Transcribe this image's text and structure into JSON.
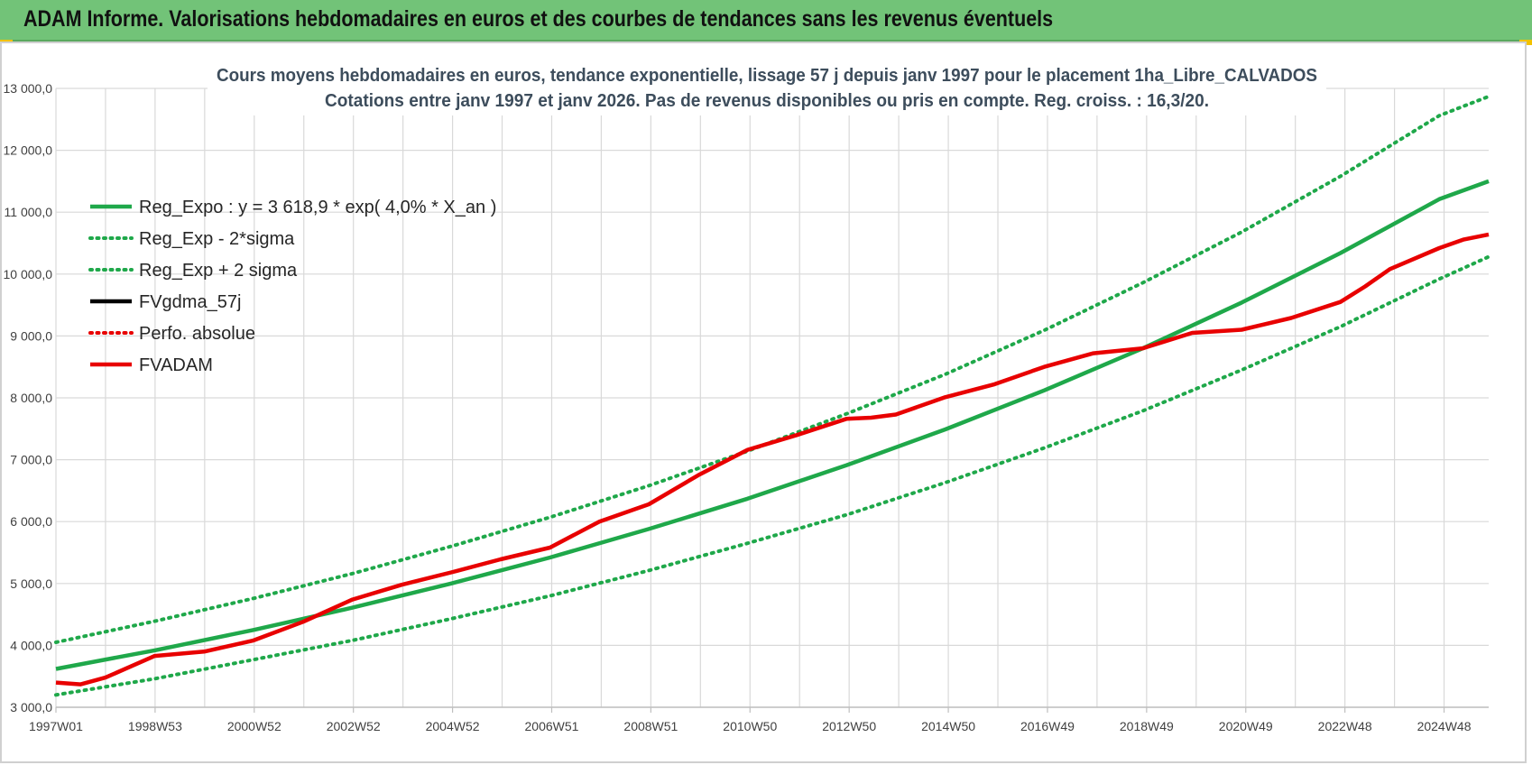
{
  "header": {
    "title": "ADAM Informe. Valorisations hebdomadaires en euros et des courbes de tendances sans les revenus éventuels"
  },
  "colors": {
    "header_bg": "#72c378",
    "green": "#1fa84a",
    "red": "#e80000",
    "black": "#000000",
    "grid": "#d9d9d9"
  },
  "chart_data": {
    "type": "line",
    "title_line1": "Cours moyens hebdomadaires en euros, tendance exponentielle, lissage 57 j depuis janv 1997  pour le placement 1ha_Libre_CALVADOS",
    "title_line2": "Cotations entre janv 1997 et janv 2026. Pas de revenus disponibles ou pris en compte. Reg. croiss. : 16,3/20.",
    "x_ticks": [
      "1997W01",
      "1998W53",
      "2000W52",
      "2002W52",
      "2004W52",
      "2006W51",
      "2008W51",
      "2010W50",
      "2012W50",
      "2014W50",
      "2016W49",
      "2018W49",
      "2020W49",
      "2022W48",
      "2024W48"
    ],
    "x_range": [
      1997.0,
      2026.0
    ],
    "y_ticks": [
      "3 000,0",
      "4 000,0",
      "5 000,0",
      "6 000,0",
      "7 000,0",
      "8 000,0",
      "9 000,0",
      "10 000,0",
      "11 000,0",
      "12 000,0",
      "13 000,0"
    ],
    "ylim": [
      3000,
      13000
    ],
    "grid": true,
    "legend_position": "top-left",
    "legend": [
      {
        "label": "Reg_Expo : y = 3 618,9 * exp( 4,0% *  X_an )",
        "color": "#1fa84a",
        "style": "solid"
      },
      {
        "label": "Reg_Exp - 2*sigma",
        "color": "#1fa84a",
        "style": "dotted"
      },
      {
        "label": "Reg_Exp + 2 sigma",
        "color": "#1fa84a",
        "style": "dotted"
      },
      {
        "label": "FVgdma_57j",
        "color": "#000000",
        "style": "solid"
      },
      {
        "label": "Perfo. absolue",
        "color": "#e80000",
        "style": "dotted"
      },
      {
        "label": "FVADAM",
        "color": "#e80000",
        "style": "solid"
      }
    ],
    "series": [
      {
        "name": "Reg_Expo : y = 3 618,9 * exp( 4,0% *  X_an )",
        "color": "#1fa84a",
        "style": "solid",
        "x": [
          1997,
          1999,
          2001,
          2003,
          2005,
          2007,
          2009,
          2011,
          2013,
          2015,
          2017,
          2019,
          2021,
          2023,
          2025,
          2026
        ],
        "y": [
          3619,
          3920,
          4250,
          4610,
          5000,
          5420,
          5880,
          6370,
          6910,
          7490,
          8120,
          8800,
          9540,
          10340,
          11210,
          11500
        ]
      },
      {
        "name": "Reg_Exp - 2*sigma",
        "color": "#1fa84a",
        "style": "dotted",
        "x": [
          1997,
          1999,
          2001,
          2003,
          2005,
          2007,
          2009,
          2011,
          2013,
          2015,
          2017,
          2019,
          2021,
          2023,
          2025,
          2026
        ],
        "y": [
          3200,
          3460,
          3770,
          4080,
          4430,
          4800,
          5210,
          5650,
          6110,
          6630,
          7190,
          7790,
          8450,
          9150,
          9920,
          10280
        ]
      },
      {
        "name": "Reg_Exp + 2 sigma",
        "color": "#1fa84a",
        "style": "dotted",
        "x": [
          1997,
          1999,
          2001,
          2003,
          2005,
          2007,
          2009,
          2011,
          2013,
          2015,
          2017,
          2019,
          2021,
          2023,
          2025,
          2026
        ],
        "y": [
          4050,
          4390,
          4760,
          5160,
          5600,
          6070,
          6580,
          7140,
          7740,
          8380,
          9090,
          9860,
          10680,
          11580,
          12560,
          12870
        ]
      },
      {
        "name": "FVADAM",
        "color": "#e80000",
        "style": "solid",
        "x": [
          1997,
          1997.5,
          1998,
          1999,
          2000,
          2001,
          2002,
          2003,
          2004,
          2005,
          2006,
          2007,
          2008,
          2009,
          2010,
          2011,
          2012,
          2013,
          2013.5,
          2014,
          2015,
          2016,
          2017,
          2018,
          2019,
          2020,
          2021,
          2022,
          2023,
          2023.5,
          2024,
          2025,
          2025.5,
          2026
        ],
        "y": [
          3400,
          3370,
          3480,
          3830,
          3900,
          4080,
          4380,
          4740,
          4980,
          5180,
          5390,
          5580,
          6000,
          6280,
          6750,
          7160,
          7400,
          7660,
          7680,
          7730,
          8010,
          8220,
          8500,
          8720,
          8800,
          9050,
          9100,
          9290,
          9550,
          9800,
          10080,
          10420,
          10560,
          10640
        ]
      }
    ]
  }
}
